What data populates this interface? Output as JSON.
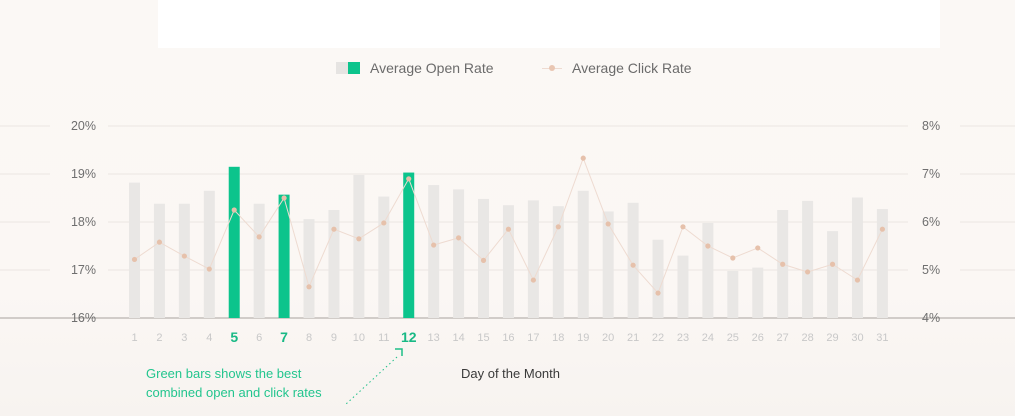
{
  "legend": {
    "open_rate_label": "Average Open Rate",
    "click_rate_label": "Average Click Rate"
  },
  "annotation": {
    "line1": "Green bars shows the best",
    "line2": "combined open and click rates"
  },
  "colors": {
    "bar_default": "#e9e7e5",
    "bar_highlight": "#0cc48c",
    "line": "#eedbd1",
    "dot": "#e6c1ab",
    "tick": "#c8c8c8",
    "tick_highlight": "#18b985",
    "grid": "#ebe6e2",
    "axis": "#a8a29e"
  },
  "chart_data": {
    "type": "bar",
    "xlabel": "Day of the Month",
    "categories": [
      "1",
      "2",
      "3",
      "4",
      "5",
      "6",
      "7",
      "8",
      "9",
      "10",
      "11",
      "12",
      "13",
      "14",
      "15",
      "16",
      "17",
      "18",
      "19",
      "20",
      "21",
      "22",
      "23",
      "24",
      "25",
      "26",
      "27",
      "28",
      "29",
      "30",
      "31"
    ],
    "highlighted": [
      "5",
      "7",
      "12"
    ],
    "y_left": {
      "ylim": [
        16,
        20
      ],
      "ticks": [
        "16%",
        "17%",
        "18%",
        "19%",
        "20%"
      ]
    },
    "y_right": {
      "ylim": [
        4,
        8
      ],
      "ticks": [
        "4%",
        "5%",
        "6%",
        "7%",
        "8%"
      ]
    },
    "series": [
      {
        "name": "Average Open Rate",
        "type": "bar",
        "axis": "left",
        "values": [
          18.82,
          18.38,
          18.38,
          18.65,
          19.15,
          18.38,
          18.57,
          18.06,
          18.25,
          18.98,
          18.53,
          19.03,
          18.77,
          18.68,
          18.48,
          18.35,
          18.45,
          18.33,
          18.65,
          18.22,
          18.4,
          17.63,
          17.3,
          17.98,
          16.98,
          17.05,
          18.25,
          18.44,
          17.81,
          18.51,
          18.27
        ]
      },
      {
        "name": "Average Click Rate",
        "type": "line",
        "axis": "right",
        "values": [
          5.22,
          5.58,
          5.29,
          5.02,
          6.25,
          5.69,
          6.5,
          4.65,
          5.85,
          5.65,
          5.98,
          6.9,
          5.52,
          5.67,
          5.2,
          5.85,
          4.79,
          5.9,
          7.33,
          5.96,
          5.1,
          4.52,
          5.9,
          5.5,
          5.25,
          5.46,
          5.12,
          4.96,
          5.12,
          4.79,
          5.85
        ]
      }
    ]
  }
}
